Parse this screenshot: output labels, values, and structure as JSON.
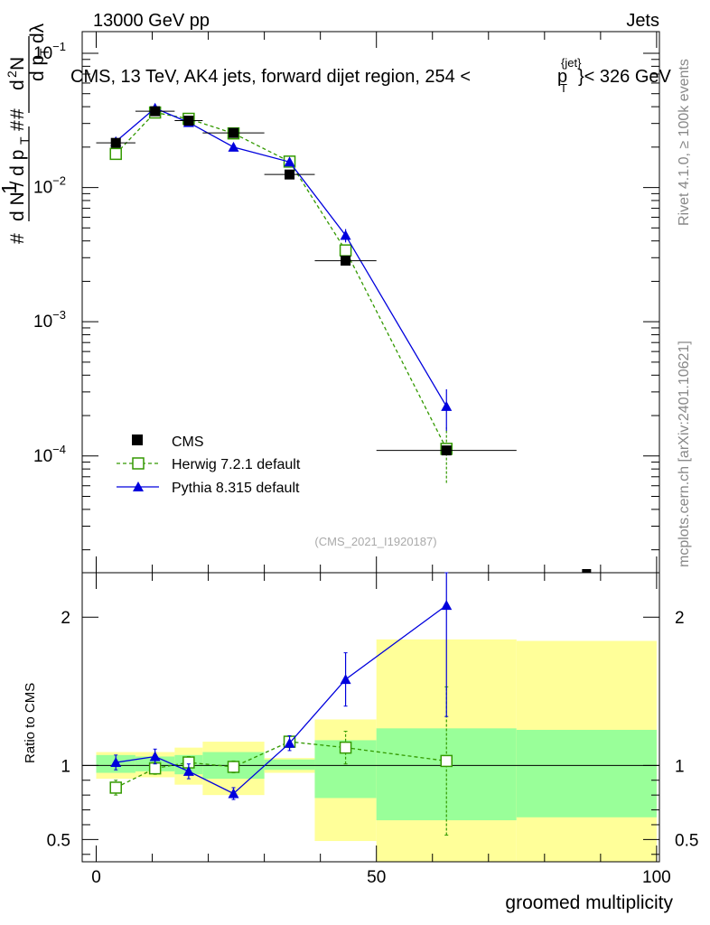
{
  "header": {
    "energy": "13000 GeV pp",
    "category": "Jets"
  },
  "side_text": {
    "rivet": "Rivet 4.1.0, ≥ 100k events",
    "mcplots": "mcplots.cern.ch [arXiv:2401.10621]"
  },
  "analysis_id": "(CMS_2021_I1920187)",
  "chart_data": [
    {
      "panel": "main",
      "type": "line",
      "title": "CMS, 13 TeV, AK4 jets, forward dijet region, 254 < p_T^{jet} < 326 GeV",
      "title_parts": {
        "prefix": "CMS, 13 TeV, AK4 jets, forward dijet region, 254 <",
        "p": "p",
        "sub": "T",
        "sup": "{jet}",
        "suffix": "}< 326 GeV"
      },
      "ylabel": "1/N dN/dp_T d²N/dp_T dλ",
      "yscale": "log",
      "ylim": [
        1.35e-05,
        0.145
      ],
      "xlim": [
        -2.5,
        100.5
      ],
      "y_ticks": [
        {
          "value": 0.1,
          "base": "10",
          "exp": "−1"
        },
        {
          "value": 0.01,
          "base": "10",
          "exp": "−2"
        },
        {
          "value": 0.001,
          "base": "10",
          "exp": "−3"
        },
        {
          "value": 0.0001,
          "base": "10",
          "exp": "−4"
        }
      ],
      "legend": [
        {
          "key": "cms",
          "label": "CMS"
        },
        {
          "key": "herwig",
          "label": "Herwig 7.2.1 default"
        },
        {
          "key": "pythia",
          "label": "Pythia 8.315 default"
        }
      ],
      "series": [
        {
          "key": "cms",
          "name": "CMS",
          "color": "#000000",
          "x": [
            3.5,
            10.5,
            16.5,
            24.5,
            34.5,
            44.5,
            62.5
          ],
          "y": [
            0.0215,
            0.037,
            0.0315,
            0.0255,
            0.0125,
            0.00285,
            0.00011
          ],
          "xerr": [
            3.5,
            3.5,
            2.5,
            5.5,
            4.5,
            5.5,
            12.5
          ]
        },
        {
          "key": "herwig",
          "name": "Herwig 7.2.1 default",
          "color": "#339900",
          "x": [
            3.5,
            10.5,
            16.5,
            24.5,
            34.5,
            44.5,
            62.5
          ],
          "y": [
            0.0178,
            0.0362,
            0.0325,
            0.0253,
            0.0156,
            0.0034,
            0.000113
          ],
          "yerr": [
            0.0009,
            0.0015,
            0.0013,
            0.0011,
            0.0009,
            0.00035,
            5e-05
          ]
        },
        {
          "key": "pythia",
          "name": "Pythia 8.315 default",
          "color": "#0000dd",
          "x": [
            3.5,
            10.5,
            16.5,
            24.5,
            34.5,
            44.5,
            62.5
          ],
          "y": [
            0.022,
            0.039,
            0.0305,
            0.02,
            0.0155,
            0.0044,
            0.000234
          ],
          "yerr": [
            0.001,
            0.0017,
            0.0013,
            0.001,
            0.0009,
            0.0005,
            8e-05
          ]
        }
      ]
    },
    {
      "panel": "ratio",
      "type": "line",
      "ylabel": "Ratio to CMS",
      "xlabel": "groomed multiplicity",
      "xlim": [
        -2.5,
        100.5
      ],
      "ylim": [
        0.35,
        2.3
      ],
      "x_ticks": [
        0,
        50,
        100
      ],
      "y_ticks": [
        0.5,
        1,
        2
      ],
      "x_tick_labels": [
        "0",
        "50",
        "100"
      ],
      "y_tick_labels": [
        "0.5",
        "1",
        "2"
      ],
      "bands": [
        {
          "xlo": 0,
          "xhi": 7,
          "stat": [
            0.95,
            1.07
          ],
          "total": [
            0.91,
            1.09
          ]
        },
        {
          "xlo": 7,
          "xhi": 14,
          "stat": [
            0.96,
            1.06
          ],
          "total": [
            0.92,
            1.09
          ]
        },
        {
          "xlo": 14,
          "xhi": 19,
          "stat": [
            0.94,
            1.07
          ],
          "total": [
            0.87,
            1.12
          ]
        },
        {
          "xlo": 19,
          "xhi": 30,
          "stat": [
            0.91,
            1.09
          ],
          "total": [
            0.8,
            1.16
          ]
        },
        {
          "xlo": 30,
          "xhi": 39,
          "stat": [
            0.97,
            1.04
          ],
          "total": [
            0.95,
            1.05
          ]
        },
        {
          "xlo": 39,
          "xhi": 50,
          "stat": [
            0.78,
            1.17
          ],
          "total": [
            0.49,
            1.31
          ]
        },
        {
          "xlo": 50,
          "xhi": 75,
          "stat": [
            0.63,
            1.25
          ],
          "total": [
            0.33,
            1.85
          ]
        },
        {
          "xlo": 75,
          "xhi": 100,
          "stat": [
            0.65,
            1.24
          ],
          "total": [
            0.33,
            1.84
          ]
        }
      ],
      "series": [
        {
          "key": "herwig",
          "name": "Herwig 7.2.1 default",
          "color": "#339900",
          "x": [
            3.5,
            10.5,
            16.5,
            24.5,
            34.5,
            44.5,
            62.5
          ],
          "y": [
            0.85,
            0.98,
            1.02,
            0.99,
            1.16,
            1.12,
            1.03
          ],
          "yerr": [
            0.05,
            0.04,
            0.04,
            0.04,
            0.04,
            0.11,
            0.5
          ]
        },
        {
          "key": "pythia",
          "name": "Pythia 8.315 default",
          "color": "#0000dd",
          "x": [
            3.5,
            10.5,
            16.5,
            24.5,
            34.5,
            44.5,
            62.5
          ],
          "y": [
            1.02,
            1.06,
            0.96,
            0.81,
            1.15,
            1.58,
            2.08
          ],
          "yerr": [
            0.05,
            0.05,
            0.05,
            0.04,
            0.05,
            0.18,
            0.75
          ]
        }
      ]
    }
  ]
}
